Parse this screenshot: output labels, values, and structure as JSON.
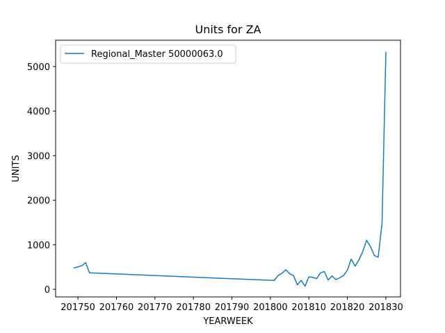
{
  "chart_data": {
    "type": "line",
    "title": "Units for ZA",
    "xlabel": "YEARWEEK",
    "ylabel": "UNITS",
    "xlim": [
      201744.2,
      201833.8
    ],
    "ylim": [
      -170,
      5590
    ],
    "x_ticks": [
      201750,
      201760,
      201770,
      201780,
      201790,
      201800,
      201810,
      201820,
      201830
    ],
    "x_tick_labels": [
      "201750",
      "201760",
      "201770",
      "201780",
      "201790",
      "201800",
      "201810",
      "201820",
      "201830"
    ],
    "y_ticks": [
      0,
      1000,
      2000,
      3000,
      4000,
      5000
    ],
    "y_tick_labels": [
      "0",
      "1000",
      "2000",
      "3000",
      "4000",
      "5000"
    ],
    "grid": false,
    "legend_position": "upper-left",
    "series": [
      {
        "name": "Regional_Master 50000063.0",
        "color": "#1f77b4",
        "x": [
          201749,
          201751,
          201752,
          201753,
          201801,
          201802,
          201803,
          201804,
          201805,
          201806,
          201807,
          201808,
          201809,
          201810,
          201811,
          201812,
          201813,
          201814,
          201815,
          201816,
          201817,
          201818,
          201819,
          201820,
          201821,
          201822,
          201823,
          201824,
          201825,
          201826,
          201827,
          201828,
          201829,
          201830
        ],
        "y": [
          480,
          530,
          600,
          370,
          200,
          310,
          360,
          440,
          350,
          310,
          100,
          200,
          70,
          280,
          270,
          240,
          370,
          400,
          210,
          300,
          220,
          260,
          310,
          430,
          680,
          520,
          660,
          850,
          1100,
          960,
          760,
          720,
          1480,
          5320
        ]
      }
    ]
  }
}
